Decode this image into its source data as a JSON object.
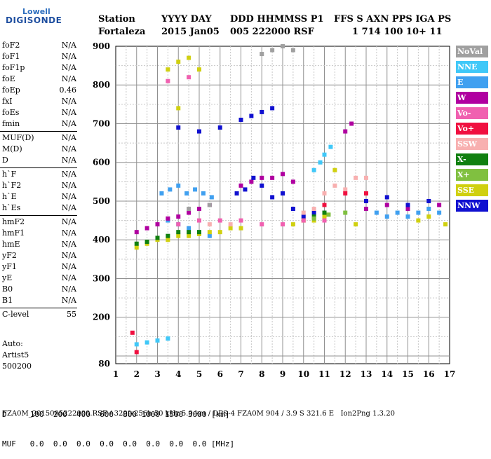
{
  "logo": {
    "line1": "Lowell",
    "line2": "DIGISONDE"
  },
  "header": {
    "labels": [
      "Station",
      "YYYY DAY",
      "DDD HHMMSS P1",
      "FFS S AXN PPS IGA PS"
    ],
    "values": [
      "Fortaleza",
      "2015 Jan05",
      "005 222000 RSF",
      "1 714 100 10+ 11"
    ]
  },
  "params": [
    {
      "name": "foF2",
      "value": "N/A"
    },
    {
      "name": "foF1",
      "value": "N/A"
    },
    {
      "name": "foF1p",
      "value": "N/A"
    },
    {
      "name": "foE",
      "value": "N/A"
    },
    {
      "name": "foEp",
      "value": "0.46"
    },
    {
      "name": "fxI",
      "value": "N/A"
    },
    {
      "name": "foEs",
      "value": "N/A"
    },
    {
      "name": "fmin",
      "value": "N/A"
    },
    {
      "name": "MUF(D)",
      "value": "N/A"
    },
    {
      "name": "M(D)",
      "value": "N/A"
    },
    {
      "name": "D",
      "value": "N/A"
    },
    {
      "name": "h`F",
      "value": "N/A"
    },
    {
      "name": "h`F2",
      "value": "N/A"
    },
    {
      "name": "h`E",
      "value": "N/A"
    },
    {
      "name": "h`Es",
      "value": "N/A"
    },
    {
      "name": "hmF2",
      "value": "N/A"
    },
    {
      "name": "hmF1",
      "value": "N/A"
    },
    {
      "name": "hmE",
      "value": "N/A"
    },
    {
      "name": "yF2",
      "value": "N/A"
    },
    {
      "name": "yF1",
      "value": "N/A"
    },
    {
      "name": "yE",
      "value": "N/A"
    },
    {
      "name": "B0",
      "value": "N/A"
    },
    {
      "name": "B1",
      "value": "N/A"
    },
    {
      "name": "C-level",
      "value": "55"
    }
  ],
  "auto": {
    "line1": "Auto:",
    "line2": "Artist5",
    "line3": "500200"
  },
  "legend": [
    {
      "label": "NoVal",
      "color": "#a0a0a0"
    },
    {
      "label": "NNE",
      "color": "#40c8f8"
    },
    {
      "label": "E",
      "color": "#40a0f0"
    },
    {
      "label": "W",
      "color": "#b000a0"
    },
    {
      "label": "Vo-",
      "color": "#f060b0"
    },
    {
      "label": "Vo+",
      "color": "#f01040"
    },
    {
      "label": "SSW",
      "color": "#f8b0b0"
    },
    {
      "label": "X-",
      "color": "#108010"
    },
    {
      "label": "X+",
      "color": "#80c040"
    },
    {
      "label": "SSE",
      "color": "#d0d010"
    },
    {
      "label": "NNW",
      "color": "#1010d0"
    }
  ],
  "bottom": {
    "d_row": "D     100  200  400  600  800 1000 1500 3000 [km]",
    "muf_row": "MUF   0.0  0.0  0.0  0.0  0.0  0.0  0.0  0.0 [MHz]"
  },
  "footer": "FZA0M_2015005222000.RSF / 320fx256h 50 kHz 5.0 km / DPS-4 FZA0M 904 / 3.9 S 321.6 E   Ion2Png 1.3.20",
  "chart_data": {
    "type": "scatter",
    "x_ticks": [
      "1",
      "2",
      "3",
      "4",
      "5",
      "6",
      "7",
      "8",
      "9",
      "10",
      "11",
      "12",
      "13",
      "14",
      "15",
      "16",
      "17"
    ],
    "y_ticks": [
      "80",
      "200",
      "300",
      "400",
      "500",
      "600",
      "700",
      "800",
      "900"
    ],
    "xlim": [
      1,
      17
    ],
    "ylim": [
      80,
      900
    ],
    "grid": true,
    "legend_placement": "right",
    "series": [
      {
        "name": "NNE",
        "color": "#40c8f8",
        "points": [
          [
            2.0,
            130
          ],
          [
            2.5,
            135
          ],
          [
            3.0,
            140
          ],
          [
            3.5,
            145
          ],
          [
            10.5,
            580
          ],
          [
            10.8,
            600
          ],
          [
            11.0,
            620
          ],
          [
            11.3,
            640
          ]
        ]
      },
      {
        "name": "E",
        "color": "#40a0f0",
        "points": [
          [
            3.2,
            520
          ],
          [
            3.6,
            530
          ],
          [
            4.0,
            540
          ],
          [
            4.4,
            520
          ],
          [
            4.8,
            530
          ],
          [
            5.2,
            520
          ],
          [
            5.6,
            510
          ],
          [
            13.0,
            480
          ],
          [
            13.5,
            470
          ],
          [
            14.0,
            460
          ],
          [
            14.5,
            470
          ],
          [
            15.0,
            460
          ],
          [
            15.5,
            470
          ],
          [
            16.0,
            480
          ],
          [
            16.5,
            470
          ],
          [
            3.5,
            450
          ],
          [
            4.0,
            440
          ],
          [
            4.5,
            430
          ],
          [
            5.0,
            420
          ],
          [
            5.5,
            410
          ]
        ]
      },
      {
        "name": "W",
        "color": "#b000a0",
        "points": [
          [
            2.0,
            420
          ],
          [
            2.5,
            430
          ],
          [
            3.0,
            440
          ],
          [
            3.5,
            455
          ],
          [
            4.0,
            460
          ],
          [
            4.5,
            470
          ],
          [
            5.0,
            480
          ],
          [
            5.5,
            490
          ],
          [
            7.0,
            540
          ],
          [
            7.5,
            550
          ],
          [
            8.0,
            560
          ],
          [
            8.5,
            560
          ],
          [
            9.0,
            570
          ],
          [
            9.5,
            550
          ],
          [
            13.0,
            480
          ],
          [
            14.0,
            490
          ],
          [
            15.0,
            480
          ],
          [
            16.5,
            490
          ],
          [
            12.0,
            680
          ],
          [
            12.3,
            700
          ]
        ]
      },
      {
        "name": "NNW",
        "color": "#1010d0",
        "points": [
          [
            6.8,
            520
          ],
          [
            7.2,
            530
          ],
          [
            7.6,
            560
          ],
          [
            8.0,
            540
          ],
          [
            8.5,
            510
          ],
          [
            9.0,
            520
          ],
          [
            9.5,
            480
          ],
          [
            10.0,
            460
          ],
          [
            10.5,
            470
          ],
          [
            11.0,
            470
          ],
          [
            7.0,
            710
          ],
          [
            7.5,
            720
          ],
          [
            8.0,
            730
          ],
          [
            8.5,
            740
          ],
          [
            13.0,
            500
          ],
          [
            14.0,
            510
          ],
          [
            15.0,
            490
          ],
          [
            16.0,
            500
          ],
          [
            4.0,
            690
          ],
          [
            5.0,
            680
          ],
          [
            6.0,
            690
          ]
        ]
      },
      {
        "name": "SSE",
        "color": "#d0d010",
        "points": [
          [
            2.0,
            380
          ],
          [
            2.5,
            390
          ],
          [
            3.0,
            400
          ],
          [
            3.5,
            400
          ],
          [
            4.0,
            410
          ],
          [
            4.5,
            410
          ],
          [
            5.0,
            415
          ],
          [
            5.5,
            420
          ],
          [
            6.0,
            420
          ],
          [
            6.5,
            430
          ],
          [
            7.0,
            430
          ],
          [
            9.5,
            440
          ],
          [
            10.0,
            450
          ],
          [
            10.5,
            450
          ],
          [
            11.0,
            460
          ],
          [
            11.5,
            580
          ],
          [
            12.5,
            440
          ],
          [
            15.5,
            450
          ],
          [
            16.0,
            460
          ],
          [
            16.8,
            440
          ],
          [
            3.5,
            840
          ],
          [
            4.0,
            860
          ],
          [
            4.5,
            870
          ],
          [
            5.0,
            840
          ],
          [
            4.0,
            740
          ]
        ]
      },
      {
        "name": "X-",
        "color": "#108010",
        "points": [
          [
            2.0,
            390
          ],
          [
            2.5,
            395
          ],
          [
            3.0,
            405
          ],
          [
            3.5,
            410
          ],
          [
            4.0,
            420
          ],
          [
            4.5,
            420
          ],
          [
            5.0,
            420
          ],
          [
            10.5,
            460
          ],
          [
            11.0,
            470
          ]
        ]
      },
      {
        "name": "Vo-",
        "color": "#f060b0",
        "points": [
          [
            4.0,
            440
          ],
          [
            5.0,
            450
          ],
          [
            6.0,
            450
          ],
          [
            7.0,
            450
          ],
          [
            8.0,
            440
          ],
          [
            9.0,
            440
          ],
          [
            10.0,
            450
          ],
          [
            11.0,
            450
          ],
          [
            3.5,
            810
          ],
          [
            4.5,
            820
          ]
        ]
      },
      {
        "name": "SSW",
        "color": "#f8b0b0",
        "points": [
          [
            10.0,
            470
          ],
          [
            10.5,
            480
          ],
          [
            11.0,
            520
          ],
          [
            11.5,
            540
          ],
          [
            12.0,
            530
          ],
          [
            12.5,
            560
          ],
          [
            13.0,
            560
          ],
          [
            5.5,
            440
          ],
          [
            6.5,
            440
          ]
        ]
      },
      {
        "name": "Vo+",
        "color": "#f01040",
        "points": [
          [
            2.0,
            110
          ],
          [
            1.8,
            160
          ],
          [
            11.0,
            490
          ],
          [
            12.0,
            520
          ],
          [
            13.0,
            520
          ]
        ]
      },
      {
        "name": "X+",
        "color": "#80c040",
        "points": [
          [
            10.5,
            455
          ],
          [
            11.2,
            465
          ],
          [
            12.0,
            470
          ]
        ]
      },
      {
        "name": "NoVal",
        "color": "#a0a0a0",
        "points": [
          [
            8.0,
            880
          ],
          [
            8.5,
            890
          ],
          [
            9.0,
            900
          ],
          [
            9.5,
            890
          ],
          [
            4.5,
            480
          ],
          [
            5.5,
            490
          ]
        ]
      }
    ]
  }
}
